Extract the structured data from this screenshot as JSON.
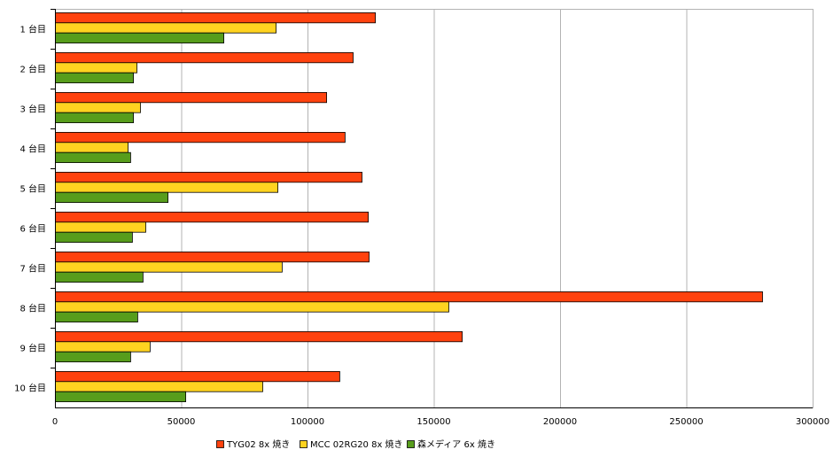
{
  "chart_data": {
    "type": "bar",
    "orientation": "horizontal",
    "title": "",
    "xlabel": "",
    "ylabel": "",
    "xlim": [
      0,
      300000
    ],
    "x_ticks": [
      "0",
      "50000",
      "100000",
      "150000",
      "200000",
      "250000",
      "300000"
    ],
    "x_tick_values": [
      0,
      50000,
      100000,
      150000,
      200000,
      250000,
      300000
    ],
    "grid": true,
    "legend_placement": "bottom",
    "categories": [
      "1 台目",
      "2 台目",
      "3 台目",
      "4 台目",
      "5 台目",
      "6 台目",
      "7 台目",
      "8 台目",
      "9 台目",
      "10 台目"
    ],
    "series": [
      {
        "name": "TYG02 8x 焼き",
        "color": "#ff420e",
        "values": [
          126700,
          117900,
          107400,
          114700,
          121400,
          123900,
          124200,
          280000,
          161100,
          112600
        ]
      },
      {
        "name": "MCC 02RG20 8x 焼き",
        "color": "#ffd320",
        "values": [
          87400,
          32300,
          33700,
          28800,
          88100,
          35800,
          89800,
          155800,
          37500,
          82100
        ]
      },
      {
        "name": "森メディア  6x 焼き",
        "color": "#579d1c",
        "values": [
          66700,
          30900,
          30900,
          29800,
          44600,
          30500,
          34700,
          32600,
          29800,
          51600
        ]
      }
    ]
  }
}
